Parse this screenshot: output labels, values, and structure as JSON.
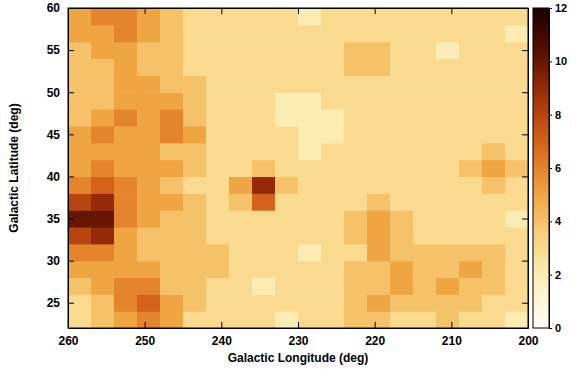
{
  "chart_data": {
    "type": "heatmap",
    "xlabel": "Galactic Longitude (deg)",
    "ylabel": "Galactic Latitude (deg)",
    "x": [
      258.5,
      255.5,
      252.5,
      249.5,
      246.5,
      243.5,
      240.5,
      237.5,
      234.5,
      231.5,
      228.5,
      225.5,
      222.5,
      219.5,
      216.5,
      213.5,
      210.5,
      207.5,
      204.5,
      201.5
    ],
    "y": [
      23,
      25,
      27,
      29,
      31,
      33,
      35,
      37,
      39,
      41,
      43,
      45,
      47,
      49,
      51,
      53,
      55,
      57,
      59
    ],
    "values": [
      [
        3,
        4,
        5,
        6,
        5,
        3,
        3,
        3,
        3,
        2,
        3,
        3,
        4,
        4,
        3,
        3,
        4,
        3,
        3,
        2
      ],
      [
        3,
        4,
        6,
        7,
        5,
        4,
        3,
        3,
        3,
        3,
        3,
        3,
        4,
        5,
        4,
        4,
        4,
        4,
        3,
        3
      ],
      [
        4,
        5,
        6,
        6,
        4,
        4,
        3,
        3,
        2,
        3,
        3,
        3,
        4,
        4,
        5,
        4,
        5,
        4,
        4,
        3
      ],
      [
        5,
        5,
        5,
        5,
        4,
        4,
        4,
        3,
        3,
        3,
        3,
        3,
        4,
        4,
        5,
        4,
        4,
        5,
        4,
        3
      ],
      [
        6,
        6,
        5,
        4,
        4,
        4,
        4,
        3,
        3,
        3,
        2,
        3,
        3,
        5,
        4,
        4,
        4,
        4,
        4,
        3
      ],
      [
        8,
        9,
        5,
        4,
        4,
        4,
        3,
        3,
        3,
        3,
        3,
        3,
        4,
        5,
        4,
        3,
        3,
        3,
        3,
        3
      ],
      [
        10,
        10,
        6,
        5,
        4,
        4,
        3,
        3,
        3,
        3,
        3,
        3,
        4,
        5,
        4,
        3,
        3,
        3,
        3,
        2
      ],
      [
        8,
        9,
        6,
        5,
        5,
        4,
        3,
        4,
        7,
        3,
        3,
        3,
        3,
        4,
        3,
        3,
        3,
        3,
        3,
        3
      ],
      [
        6,
        7,
        6,
        5,
        4,
        3,
        3,
        5,
        9,
        4,
        3,
        3,
        3,
        3,
        3,
        3,
        3,
        3,
        4,
        3
      ],
      [
        5,
        6,
        5,
        5,
        5,
        4,
        3,
        3,
        4,
        3,
        3,
        3,
        3,
        3,
        3,
        3,
        3,
        4,
        5,
        4
      ],
      [
        5,
        5,
        5,
        5,
        4,
        4,
        3,
        3,
        3,
        3,
        2,
        3,
        3,
        3,
        3,
        3,
        3,
        3,
        4,
        3
      ],
      [
        5,
        6,
        5,
        5,
        6,
        5,
        3,
        3,
        3,
        3,
        2,
        2,
        3,
        3,
        3,
        3,
        3,
        3,
        3,
        3
      ],
      [
        4,
        5,
        6,
        5,
        6,
        4,
        3,
        3,
        3,
        2,
        2,
        2,
        3,
        3,
        3,
        3,
        3,
        3,
        3,
        3
      ],
      [
        4,
        4,
        5,
        5,
        5,
        4,
        3,
        3,
        3,
        2,
        2,
        3,
        3,
        3,
        3,
        3,
        3,
        3,
        3,
        3
      ],
      [
        4,
        4,
        5,
        5,
        4,
        4,
        3,
        3,
        3,
        3,
        3,
        3,
        3,
        3,
        3,
        3,
        3,
        3,
        3,
        3
      ],
      [
        4,
        4,
        5,
        4,
        4,
        3,
        3,
        3,
        3,
        3,
        3,
        3,
        4,
        4,
        3,
        3,
        3,
        3,
        3,
        3
      ],
      [
        4,
        5,
        5,
        4,
        4,
        3,
        3,
        3,
        3,
        3,
        3,
        3,
        4,
        4,
        3,
        3,
        2,
        3,
        3,
        3
      ],
      [
        5,
        5,
        6,
        5,
        4,
        3,
        3,
        3,
        3,
        3,
        3,
        3,
        3,
        3,
        3,
        3,
        3,
        3,
        3,
        2
      ],
      [
        5,
        6,
        6,
        5,
        4,
        3,
        3,
        3,
        3,
        3,
        2,
        3,
        3,
        3,
        3,
        3,
        3,
        3,
        3,
        3
      ]
    ],
    "xlim": [
      260,
      200
    ],
    "ylim": [
      22,
      60
    ],
    "xticks": [
      260,
      250,
      240,
      230,
      220,
      210,
      200
    ],
    "yticks": [
      25,
      30,
      35,
      40,
      45,
      50,
      55,
      60
    ],
    "zlim": [
      0,
      12
    ],
    "zticks": [
      0,
      2,
      4,
      6,
      8,
      10,
      12
    ]
  }
}
